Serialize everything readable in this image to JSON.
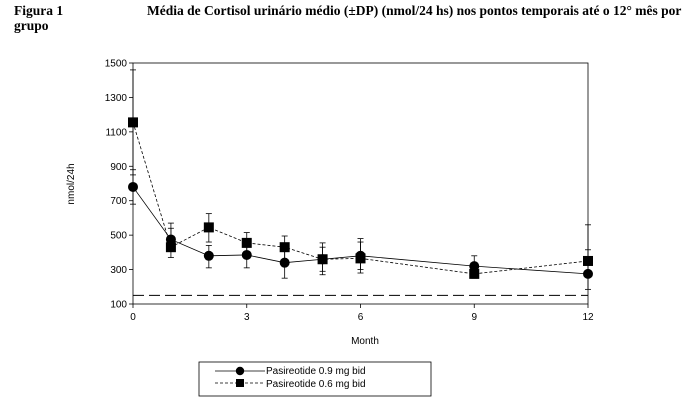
{
  "caption": {
    "figure_label": "Figura 1",
    "title": "Média de Cortisol urinário médio (±DP) (nmol/24 hs) nos pontos temporais até o 12° mês por grupo"
  },
  "chart_data": {
    "type": "line",
    "title": "",
    "xlabel": "Month",
    "ylabel": "nmol/24h",
    "xlim": [
      0,
      12
    ],
    "ylim": [
      100,
      1500
    ],
    "xticks": [
      0,
      3,
      6,
      9,
      12
    ],
    "yticks": [
      100,
      300,
      500,
      700,
      900,
      1100,
      1300,
      1500
    ],
    "grid": false,
    "legend_position": "bottom",
    "reference_line": {
      "y": 150,
      "style": "long-dash"
    },
    "series": [
      {
        "name": "Pasireotide 0.9 mg bid",
        "marker": "circle",
        "line_style": "solid",
        "x": [
          0,
          1,
          2,
          3,
          4,
          5,
          6,
          9,
          12
        ],
        "y": [
          780,
          475,
          380,
          385,
          340,
          360,
          380,
          320,
          275
        ],
        "err_low": [
          680,
          410,
          310,
          310,
          250,
          290,
          300,
          260,
          185
        ],
        "err_high": [
          880,
          540,
          440,
          460,
          430,
          430,
          460,
          380,
          560
        ]
      },
      {
        "name": "Pasireotide 0.6 mg bid",
        "marker": "square",
        "line_style": "dashed",
        "x": [
          0,
          1,
          2,
          3,
          4,
          5,
          6,
          9,
          12
        ],
        "y": [
          1155,
          430,
          545,
          455,
          430,
          360,
          365,
          275,
          350
        ],
        "err_low": [
          850,
          370,
          460,
          390,
          360,
          270,
          280,
          250,
          280
        ],
        "err_high": [
          1460,
          570,
          625,
          515,
          495,
          455,
          480,
          320,
          415
        ]
      }
    ]
  }
}
